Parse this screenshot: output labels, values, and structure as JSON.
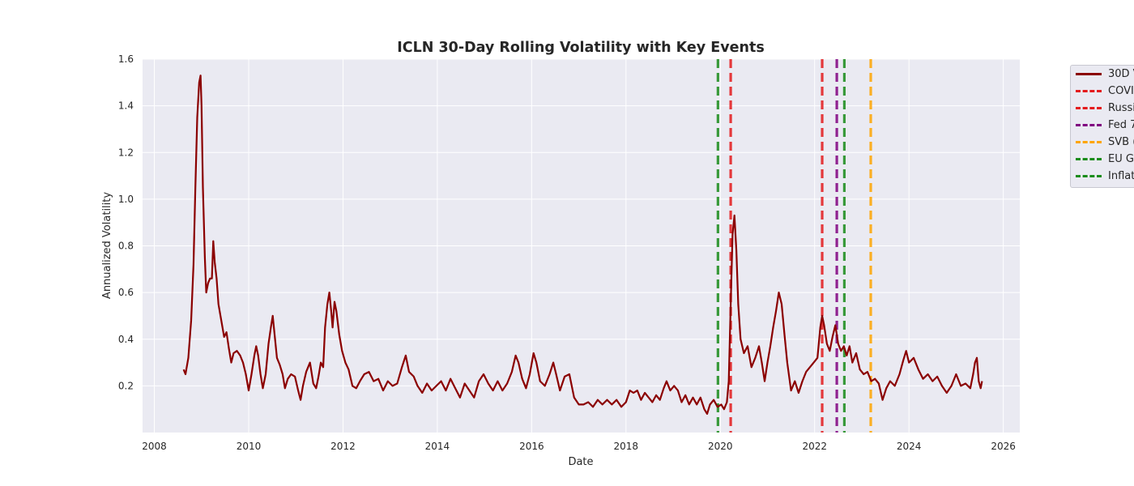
{
  "chart_data": {
    "type": "line",
    "title": "ICLN 30-Day Rolling Volatility with Key Events",
    "xlabel": "Date",
    "ylabel": "Annualized Volatility",
    "xlim": [
      2007.75,
      2026.35
    ],
    "ylim": [
      0.0,
      1.6
    ],
    "x_ticks": [
      2008,
      2010,
      2012,
      2014,
      2016,
      2018,
      2020,
      2022,
      2024,
      2026
    ],
    "y_ticks": [
      0.2,
      0.4,
      0.6,
      0.8,
      1.0,
      1.2,
      1.4,
      1.6
    ],
    "grid": true,
    "legend_position": "upper right, outside plot",
    "series": [
      {
        "name": "30D V",
        "color": "#8b0000",
        "points": [
          [
            2008.62,
            0.27
          ],
          [
            2008.66,
            0.25
          ],
          [
            2008.72,
            0.32
          ],
          [
            2008.78,
            0.48
          ],
          [
            2008.83,
            0.72
          ],
          [
            2008.87,
            1.05
          ],
          [
            2008.91,
            1.35
          ],
          [
            2008.95,
            1.5
          ],
          [
            2008.98,
            1.53
          ],
          [
            2009.0,
            1.4
          ],
          [
            2009.03,
            1.05
          ],
          [
            2009.07,
            0.75
          ],
          [
            2009.1,
            0.6
          ],
          [
            2009.14,
            0.64
          ],
          [
            2009.18,
            0.66
          ],
          [
            2009.22,
            0.66
          ],
          [
            2009.25,
            0.82
          ],
          [
            2009.28,
            0.73
          ],
          [
            2009.32,
            0.66
          ],
          [
            2009.36,
            0.55
          ],
          [
            2009.42,
            0.48
          ],
          [
            2009.48,
            0.41
          ],
          [
            2009.53,
            0.43
          ],
          [
            2009.58,
            0.36
          ],
          [
            2009.63,
            0.3
          ],
          [
            2009.68,
            0.34
          ],
          [
            2009.75,
            0.35
          ],
          [
            2009.82,
            0.33
          ],
          [
            2009.88,
            0.3
          ],
          [
            2009.94,
            0.25
          ],
          [
            2010.0,
            0.18
          ],
          [
            2010.06,
            0.25
          ],
          [
            2010.12,
            0.33
          ],
          [
            2010.16,
            0.37
          ],
          [
            2010.2,
            0.33
          ],
          [
            2010.25,
            0.25
          ],
          [
            2010.3,
            0.19
          ],
          [
            2010.36,
            0.25
          ],
          [
            2010.42,
            0.38
          ],
          [
            2010.47,
            0.45
          ],
          [
            2010.51,
            0.5
          ],
          [
            2010.55,
            0.42
          ],
          [
            2010.6,
            0.32
          ],
          [
            2010.66,
            0.29
          ],
          [
            2010.72,
            0.25
          ],
          [
            2010.77,
            0.19
          ],
          [
            2010.83,
            0.23
          ],
          [
            2010.9,
            0.25
          ],
          [
            2010.98,
            0.24
          ],
          [
            2011.05,
            0.18
          ],
          [
            2011.1,
            0.14
          ],
          [
            2011.15,
            0.2
          ],
          [
            2011.22,
            0.26
          ],
          [
            2011.3,
            0.3
          ],
          [
            2011.37,
            0.21
          ],
          [
            2011.43,
            0.19
          ],
          [
            2011.48,
            0.24
          ],
          [
            2011.53,
            0.3
          ],
          [
            2011.58,
            0.28
          ],
          [
            2011.62,
            0.45
          ],
          [
            2011.67,
            0.55
          ],
          [
            2011.71,
            0.6
          ],
          [
            2011.75,
            0.52
          ],
          [
            2011.78,
            0.45
          ],
          [
            2011.82,
            0.56
          ],
          [
            2011.86,
            0.52
          ],
          [
            2011.92,
            0.42
          ],
          [
            2011.98,
            0.35
          ],
          [
            2012.05,
            0.3
          ],
          [
            2012.12,
            0.27
          ],
          [
            2012.2,
            0.2
          ],
          [
            2012.28,
            0.19
          ],
          [
            2012.36,
            0.22
          ],
          [
            2012.45,
            0.25
          ],
          [
            2012.55,
            0.26
          ],
          [
            2012.65,
            0.22
          ],
          [
            2012.75,
            0.23
          ],
          [
            2012.85,
            0.18
          ],
          [
            2012.95,
            0.22
          ],
          [
            2013.05,
            0.2
          ],
          [
            2013.15,
            0.21
          ],
          [
            2013.25,
            0.28
          ],
          [
            2013.33,
            0.33
          ],
          [
            2013.4,
            0.26
          ],
          [
            2013.5,
            0.24
          ],
          [
            2013.58,
            0.2
          ],
          [
            2013.68,
            0.17
          ],
          [
            2013.78,
            0.21
          ],
          [
            2013.88,
            0.18
          ],
          [
            2013.98,
            0.2
          ],
          [
            2014.08,
            0.22
          ],
          [
            2014.18,
            0.18
          ],
          [
            2014.28,
            0.23
          ],
          [
            2014.38,
            0.19
          ],
          [
            2014.48,
            0.15
          ],
          [
            2014.58,
            0.21
          ],
          [
            2014.68,
            0.18
          ],
          [
            2014.78,
            0.15
          ],
          [
            2014.88,
            0.22
          ],
          [
            2014.98,
            0.25
          ],
          [
            2015.08,
            0.21
          ],
          [
            2015.18,
            0.18
          ],
          [
            2015.28,
            0.22
          ],
          [
            2015.38,
            0.18
          ],
          [
            2015.48,
            0.21
          ],
          [
            2015.58,
            0.26
          ],
          [
            2015.66,
            0.33
          ],
          [
            2015.72,
            0.3
          ],
          [
            2015.8,
            0.23
          ],
          [
            2015.88,
            0.19
          ],
          [
            2015.96,
            0.25
          ],
          [
            2016.04,
            0.34
          ],
          [
            2016.1,
            0.3
          ],
          [
            2016.18,
            0.22
          ],
          [
            2016.28,
            0.2
          ],
          [
            2016.38,
            0.25
          ],
          [
            2016.46,
            0.3
          ],
          [
            2016.52,
            0.25
          ],
          [
            2016.6,
            0.18
          ],
          [
            2016.7,
            0.24
          ],
          [
            2016.8,
            0.25
          ],
          [
            2016.9,
            0.15
          ],
          [
            2017.0,
            0.12
          ],
          [
            2017.1,
            0.12
          ],
          [
            2017.2,
            0.13
          ],
          [
            2017.3,
            0.11
          ],
          [
            2017.4,
            0.14
          ],
          [
            2017.5,
            0.12
          ],
          [
            2017.6,
            0.14
          ],
          [
            2017.7,
            0.12
          ],
          [
            2017.8,
            0.14
          ],
          [
            2017.9,
            0.11
          ],
          [
            2018.0,
            0.13
          ],
          [
            2018.08,
            0.18
          ],
          [
            2018.16,
            0.17
          ],
          [
            2018.24,
            0.18
          ],
          [
            2018.32,
            0.14
          ],
          [
            2018.4,
            0.17
          ],
          [
            2018.48,
            0.15
          ],
          [
            2018.56,
            0.13
          ],
          [
            2018.64,
            0.16
          ],
          [
            2018.72,
            0.14
          ],
          [
            2018.8,
            0.19
          ],
          [
            2018.86,
            0.22
          ],
          [
            2018.94,
            0.18
          ],
          [
            2019.02,
            0.2
          ],
          [
            2019.1,
            0.18
          ],
          [
            2019.18,
            0.13
          ],
          [
            2019.26,
            0.16
          ],
          [
            2019.34,
            0.12
          ],
          [
            2019.42,
            0.15
          ],
          [
            2019.5,
            0.12
          ],
          [
            2019.58,
            0.15
          ],
          [
            2019.66,
            0.1
          ],
          [
            2019.72,
            0.08
          ],
          [
            2019.78,
            0.12
          ],
          [
            2019.86,
            0.14
          ],
          [
            2019.94,
            0.11
          ],
          [
            2020.02,
            0.12
          ],
          [
            2020.08,
            0.1
          ],
          [
            2020.14,
            0.13
          ],
          [
            2020.18,
            0.22
          ],
          [
            2020.22,
            0.55
          ],
          [
            2020.26,
            0.85
          ],
          [
            2020.3,
            0.93
          ],
          [
            2020.34,
            0.78
          ],
          [
            2020.38,
            0.55
          ],
          [
            2020.43,
            0.4
          ],
          [
            2020.5,
            0.34
          ],
          [
            2020.58,
            0.37
          ],
          [
            2020.66,
            0.28
          ],
          [
            2020.74,
            0.32
          ],
          [
            2020.82,
            0.37
          ],
          [
            2020.88,
            0.3
          ],
          [
            2020.94,
            0.22
          ],
          [
            2021.0,
            0.3
          ],
          [
            2021.06,
            0.37
          ],
          [
            2021.12,
            0.45
          ],
          [
            2021.18,
            0.52
          ],
          [
            2021.24,
            0.6
          ],
          [
            2021.3,
            0.55
          ],
          [
            2021.36,
            0.42
          ],
          [
            2021.42,
            0.3
          ],
          [
            2021.5,
            0.18
          ],
          [
            2021.58,
            0.22
          ],
          [
            2021.66,
            0.17
          ],
          [
            2021.74,
            0.22
          ],
          [
            2021.82,
            0.26
          ],
          [
            2021.9,
            0.28
          ],
          [
            2021.98,
            0.3
          ],
          [
            2022.06,
            0.32
          ],
          [
            2022.12,
            0.45
          ],
          [
            2022.16,
            0.5
          ],
          [
            2022.2,
            0.46
          ],
          [
            2022.26,
            0.38
          ],
          [
            2022.32,
            0.35
          ],
          [
            2022.38,
            0.41
          ],
          [
            2022.44,
            0.46
          ],
          [
            2022.5,
            0.38
          ],
          [
            2022.56,
            0.35
          ],
          [
            2022.62,
            0.37
          ],
          [
            2022.68,
            0.33
          ],
          [
            2022.74,
            0.37
          ],
          [
            2022.8,
            0.3
          ],
          [
            2022.88,
            0.34
          ],
          [
            2022.96,
            0.27
          ],
          [
            2023.04,
            0.25
          ],
          [
            2023.12,
            0.26
          ],
          [
            2023.2,
            0.22
          ],
          [
            2023.28,
            0.23
          ],
          [
            2023.36,
            0.21
          ],
          [
            2023.44,
            0.14
          ],
          [
            2023.52,
            0.19
          ],
          [
            2023.6,
            0.22
          ],
          [
            2023.7,
            0.2
          ],
          [
            2023.8,
            0.25
          ],
          [
            2023.88,
            0.31
          ],
          [
            2023.94,
            0.35
          ],
          [
            2024.0,
            0.3
          ],
          [
            2024.1,
            0.32
          ],
          [
            2024.2,
            0.27
          ],
          [
            2024.3,
            0.23
          ],
          [
            2024.4,
            0.25
          ],
          [
            2024.5,
            0.22
          ],
          [
            2024.6,
            0.24
          ],
          [
            2024.7,
            0.2
          ],
          [
            2024.8,
            0.17
          ],
          [
            2024.9,
            0.2
          ],
          [
            2025.0,
            0.25
          ],
          [
            2025.1,
            0.2
          ],
          [
            2025.2,
            0.21
          ],
          [
            2025.3,
            0.19
          ],
          [
            2025.36,
            0.25
          ],
          [
            2025.4,
            0.3
          ],
          [
            2025.44,
            0.32
          ],
          [
            2025.48,
            0.22
          ],
          [
            2025.52,
            0.19
          ],
          [
            2025.55,
            0.22
          ]
        ]
      }
    ],
    "events": [
      {
        "name": "COVI",
        "x": 2020.22,
        "color": "#e41a1c"
      },
      {
        "name": "Russi",
        "x": 2022.16,
        "color": "#e41a1c"
      },
      {
        "name": "Fed 7",
        "x": 2022.47,
        "color": "#800080"
      },
      {
        "name": "SVB (",
        "x": 2023.19,
        "color": "#ffa500"
      },
      {
        "name": "EU G",
        "x": 2019.95,
        "color": "#1a8c1a"
      },
      {
        "name": "Inflati",
        "x": 2022.63,
        "color": "#1a8c1a"
      }
    ]
  }
}
